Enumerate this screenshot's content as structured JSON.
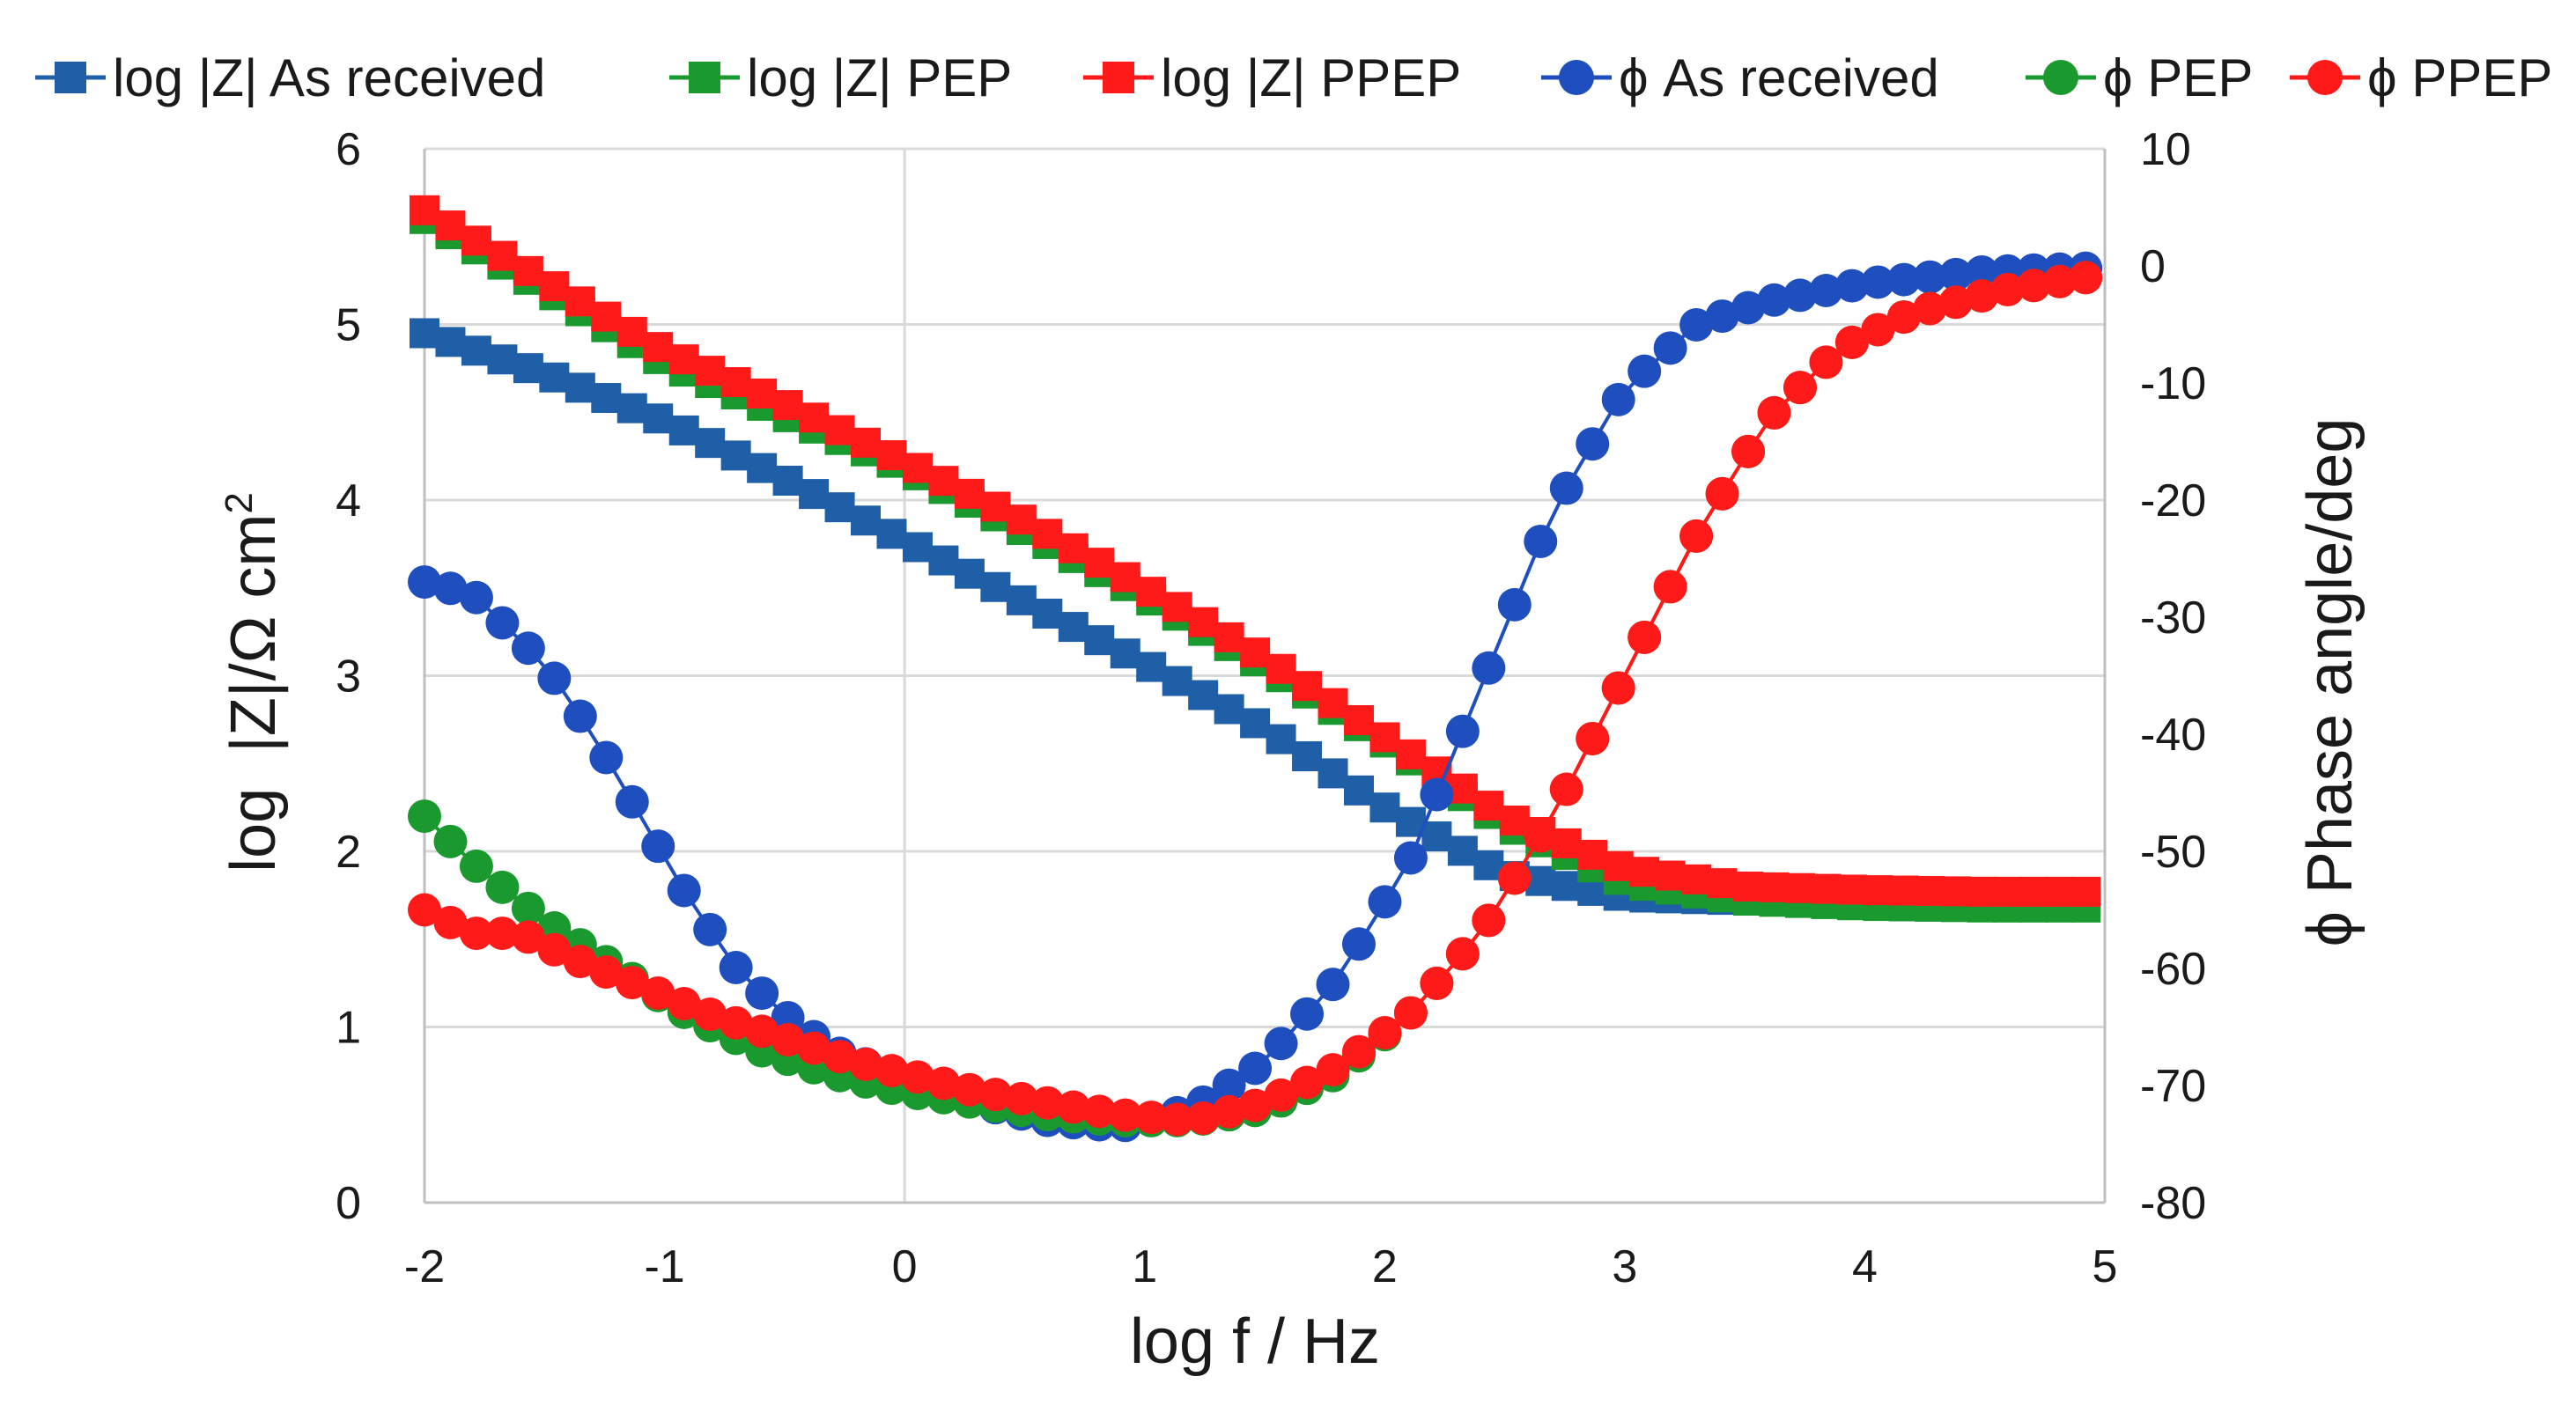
{
  "chart_data": {
    "type": "line",
    "xlabel": "log f / Hz",
    "ylabel_left": "log |Z|/Ω cm²",
    "ylabel_left_prefix": "log",
    "ylabel_left_main": "|Z|/Ω cm",
    "ylabel_left_sup": "2",
    "ylabel_right": "ϕ Phase angle/deg",
    "xlim": [
      -2,
      5
    ],
    "ylim_left": [
      0,
      6
    ],
    "ylim_right": [
      -80,
      10
    ],
    "x_ticks": [
      "-2",
      "-1",
      "0",
      "1",
      "2",
      "3",
      "4",
      "5"
    ],
    "y_left_ticks": [
      "0",
      "1",
      "2",
      "3",
      "4",
      "5",
      "6"
    ],
    "y_right_ticks": [
      "-80",
      "-70",
      "-60",
      "-50",
      "-40",
      "-30",
      "-20",
      "-10",
      "0",
      "10"
    ],
    "grid": true,
    "legend_position": "top",
    "colors": {
      "as_received": "#1f5fa8",
      "as_received_phase": "#1f4fbf",
      "pep": "#1a9a2e",
      "ppep": "#ff1a1a",
      "grid": "#d9d9d9",
      "axis": "#bfbfbf"
    },
    "series": [
      {
        "name": "log |Z| As received",
        "axis": "left",
        "marker": "square",
        "color_key": "as_received",
        "points": [
          [
            -2,
            4.95
          ],
          [
            -1.5,
            4.72
          ],
          [
            -1,
            4.45
          ],
          [
            -0.5,
            4.12
          ],
          [
            0,
            3.77
          ],
          [
            0.5,
            3.42
          ],
          [
            1,
            3.07
          ],
          [
            1.5,
            2.7
          ],
          [
            2,
            2.25
          ],
          [
            2.5,
            1.87
          ],
          [
            3,
            1.74
          ],
          [
            3.5,
            1.72
          ],
          [
            4,
            1.71
          ],
          [
            4.5,
            1.71
          ],
          [
            4.92,
            1.71
          ]
        ]
      },
      {
        "name": "log |Z| PEP",
        "axis": "left",
        "marker": "square",
        "color_key": "pep",
        "points": [
          [
            -2,
            5.6
          ],
          [
            -1.5,
            5.2
          ],
          [
            -1,
            4.78
          ],
          [
            -0.5,
            4.48
          ],
          [
            0,
            4.18
          ],
          [
            0.5,
            3.82
          ],
          [
            1,
            3.45
          ],
          [
            1.5,
            3.05
          ],
          [
            2,
            2.62
          ],
          [
            2.5,
            2.15
          ],
          [
            3,
            1.82
          ],
          [
            3.5,
            1.72
          ],
          [
            4,
            1.69
          ],
          [
            4.5,
            1.68
          ],
          [
            4.92,
            1.68
          ]
        ]
      },
      {
        "name": "log |Z| PPEP",
        "axis": "left",
        "marker": "square",
        "color_key": "ppep",
        "points": [
          [
            -2,
            5.65
          ],
          [
            -1.5,
            5.25
          ],
          [
            -1,
            4.85
          ],
          [
            -0.5,
            4.55
          ],
          [
            0,
            4.22
          ],
          [
            0.5,
            3.88
          ],
          [
            1,
            3.5
          ],
          [
            1.5,
            3.1
          ],
          [
            2,
            2.65
          ],
          [
            2.5,
            2.2
          ],
          [
            3,
            1.9
          ],
          [
            3.5,
            1.8
          ],
          [
            4,
            1.78
          ],
          [
            4.5,
            1.77
          ],
          [
            4.92,
            1.77
          ]
        ]
      },
      {
        "name": "ϕ As received",
        "axis": "right",
        "marker": "circle",
        "color_key": "as_received_phase",
        "points": [
          [
            -2,
            -27
          ],
          [
            -1.8,
            -28
          ],
          [
            -1.5,
            -34
          ],
          [
            -1.3,
            -40
          ],
          [
            -1.1,
            -47
          ],
          [
            -0.9,
            -54
          ],
          [
            -0.7,
            -60
          ],
          [
            -0.5,
            -64
          ],
          [
            -0.3,
            -67
          ],
          [
            0,
            -69.5
          ],
          [
            0.3,
            -71.5
          ],
          [
            0.6,
            -73
          ],
          [
            0.9,
            -73.5
          ],
          [
            1.2,
            -72
          ],
          [
            1.5,
            -68
          ],
          [
            1.8,
            -61
          ],
          [
            2.1,
            -51
          ],
          [
            2.4,
            -36
          ],
          [
            2.7,
            -21
          ],
          [
            3,
            -10.5
          ],
          [
            3.3,
            -5
          ],
          [
            3.6,
            -3
          ],
          [
            4,
            -1.5
          ],
          [
            4.5,
            -0.5
          ],
          [
            4.92,
            -0.2
          ]
        ]
      },
      {
        "name": "ϕ PEP",
        "axis": "right",
        "marker": "circle",
        "color_key": "pep",
        "points": [
          [
            -2,
            -47
          ],
          [
            -1.8,
            -51
          ],
          [
            -1.5,
            -56
          ],
          [
            -1.2,
            -60
          ],
          [
            -0.9,
            -64
          ],
          [
            -0.6,
            -67
          ],
          [
            -0.3,
            -69
          ],
          [
            0,
            -70.5
          ],
          [
            0.3,
            -71.5
          ],
          [
            0.6,
            -72.5
          ],
          [
            0.9,
            -73
          ],
          [
            1.2,
            -73
          ],
          [
            1.5,
            -72
          ],
          [
            1.8,
            -69
          ],
          [
            2.1,
            -64
          ],
          [
            2.4,
            -57
          ],
          [
            2.7,
            -47
          ],
          [
            3,
            -35
          ],
          [
            3.3,
            -23
          ],
          [
            3.6,
            -13
          ],
          [
            3.9,
            -7
          ],
          [
            4.2,
            -4
          ],
          [
            4.6,
            -2
          ],
          [
            4.92,
            -1
          ]
        ]
      },
      {
        "name": "ϕ PPEP",
        "axis": "right",
        "marker": "circle",
        "color_key": "ppep",
        "points": [
          [
            -2,
            -55
          ],
          [
            -1.8,
            -57
          ],
          [
            -1.6,
            -57
          ],
          [
            -1.4,
            -59
          ],
          [
            -1.1,
            -61.5
          ],
          [
            -0.8,
            -64
          ],
          [
            -0.5,
            -66
          ],
          [
            -0.2,
            -68
          ],
          [
            0,
            -69
          ],
          [
            0.3,
            -70.5
          ],
          [
            0.6,
            -71.5
          ],
          [
            0.9,
            -72.5
          ],
          [
            1.2,
            -73
          ],
          [
            1.5,
            -71.5
          ],
          [
            1.8,
            -68.5
          ],
          [
            2.1,
            -64
          ],
          [
            2.4,
            -57
          ],
          [
            2.7,
            -47
          ],
          [
            3,
            -35
          ],
          [
            3.3,
            -23
          ],
          [
            3.6,
            -13
          ],
          [
            3.9,
            -7
          ],
          [
            4.2,
            -4
          ],
          [
            4.6,
            -2
          ],
          [
            4.92,
            -1
          ]
        ]
      }
    ]
  }
}
